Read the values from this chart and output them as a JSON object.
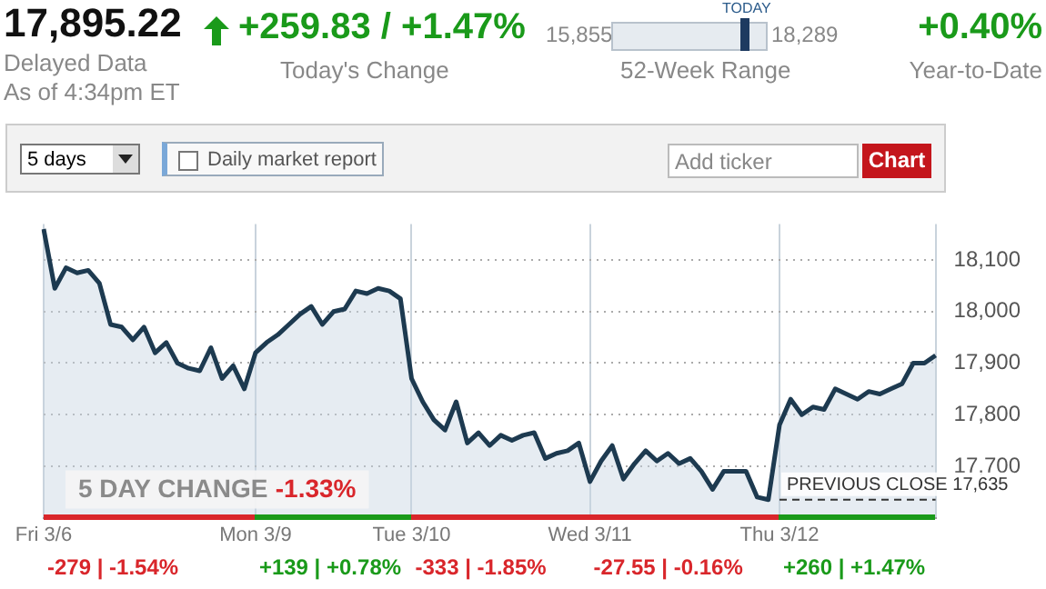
{
  "chart_data": {
    "type": "area",
    "title": "17,895.22",
    "annotations": [
      "Delayed Data",
      "As of 4:34pm ET",
      "+259.83 / +1.47%",
      "Today's Change",
      "15,855",
      "TODAY",
      "18,289",
      "52-Week Range",
      "+0.40%",
      "Year-to-Date",
      "5 days",
      "Daily market report",
      "Add ticker",
      "Chart",
      "5 DAY CHANGE",
      "-1.33%",
      "-279 | -1.54%",
      "+139 | +0.78%",
      "-333 | -1.85%",
      "-27.55 | -0.16%",
      "+260 | +1.47%"
    ],
    "categories": [
      "Fri 3/6",
      null,
      null,
      null,
      null,
      null,
      null,
      null,
      null,
      null,
      null,
      null,
      null,
      null,
      null,
      null,
      null,
      null,
      null,
      "Mon 3/9",
      null,
      null,
      null,
      null,
      null,
      null,
      null,
      null,
      null,
      null,
      null,
      null,
      null,
      "Tue 3/10",
      null,
      null,
      null,
      null,
      null,
      null,
      null,
      null,
      null,
      null,
      null,
      null,
      null,
      null,
      null,
      "Wed 3/11",
      null,
      null,
      null,
      null,
      null,
      null,
      null,
      null,
      null,
      null,
      null,
      null,
      null,
      null,
      null,
      null,
      "Thu 3/12",
      null,
      null,
      null,
      null,
      null,
      null,
      null,
      null,
      null,
      null,
      null,
      null,
      null,
      null
    ],
    "series": [
      {
        "color": "#1d3a50",
        "values": [
          18160,
          18045,
          18085,
          18075,
          18080,
          18055,
          17975,
          17970,
          17945,
          17970,
          17920,
          17940,
          17900,
          17890,
          17885,
          17930,
          17870,
          17895,
          17850,
          17920,
          17940,
          17955,
          17975,
          17995,
          18010,
          17975,
          18000,
          18005,
          18040,
          18035,
          18045,
          18040,
          18025,
          17870,
          17825,
          17790,
          17770,
          17825,
          17745,
          17765,
          17740,
          17760,
          17750,
          17760,
          17765,
          17715,
          17725,
          17730,
          17745,
          17670,
          17710,
          17740,
          17675,
          17705,
          17730,
          17710,
          17725,
          17705,
          17715,
          17690,
          17655,
          17690,
          17690,
          17690,
          17640,
          17635,
          17780,
          17830,
          17800,
          17815,
          17810,
          17850,
          17840,
          17830,
          17845,
          17840,
          17850,
          17860,
          17900,
          17900,
          17915
        ]
      }
    ],
    "ylim": [
      17600,
      18170
    ],
    "yticks": [
      {
        "value": 17700,
        "label": "17,700"
      },
      {
        "value": 17800,
        "label": "17,800"
      },
      {
        "value": 17900,
        "label": "17,900"
      },
      {
        "value": 18000,
        "label": "18,000"
      },
      {
        "value": 18100,
        "label": "18,100"
      }
    ],
    "grid": true,
    "legend": false,
    "ref_lines": [
      {
        "axis": "y",
        "value": 17635,
        "label": "PREVIOUS CLOSE 17,635",
        "line_style": "dashed",
        "color": "#333333"
      }
    ]
  }
}
